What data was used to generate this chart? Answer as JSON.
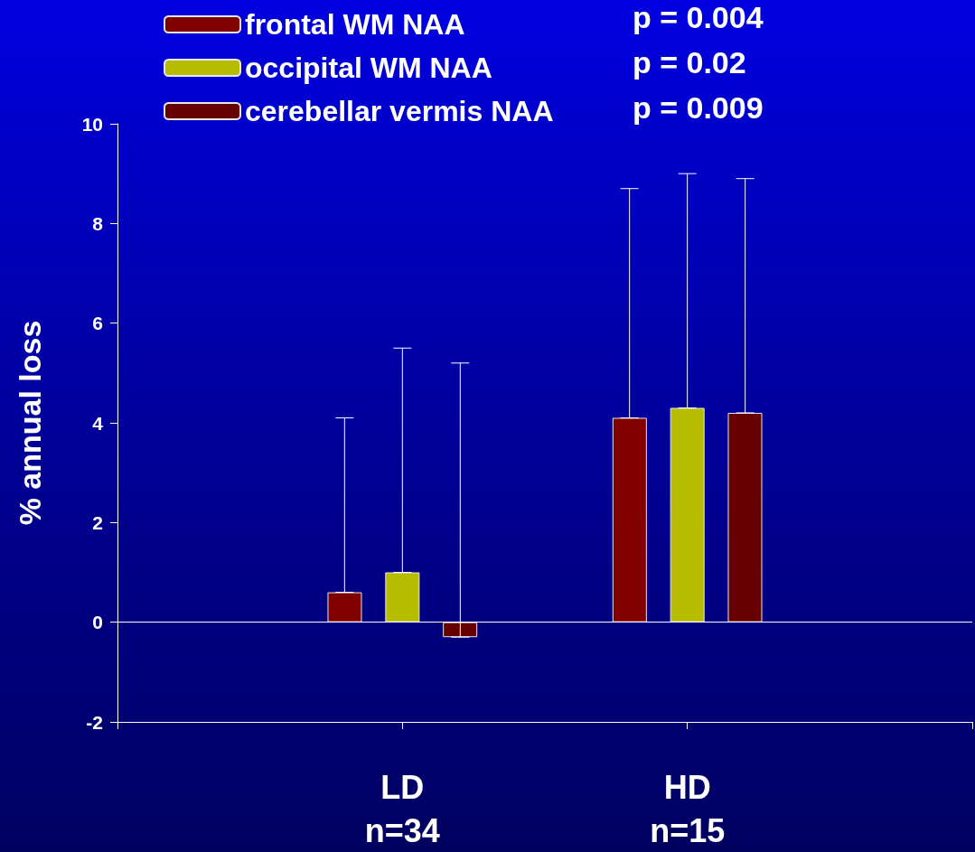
{
  "chart_data": {
    "type": "bar",
    "categories": [
      null,
      "LD\nn=34",
      "HD\nn=15",
      null
    ],
    "ylabel": "% annual loss",
    "ylim": [
      -2,
      10
    ],
    "yticks": [
      -2,
      0,
      2,
      4,
      6,
      8,
      10
    ],
    "series": [
      {
        "name": "frontal WM NAA",
        "color": "#800000",
        "values": [
          null,
          0.6,
          4.1,
          null
        ],
        "errors": [
          null,
          [
            0.6,
            4.1
          ],
          [
            4.1,
            8.7
          ],
          null
        ]
      },
      {
        "name": "occipital WM NAA",
        "color": "#b8bc00",
        "values": [
          null,
          1.0,
          4.3,
          null
        ],
        "errors": [
          null,
          [
            1.0,
            5.5
          ],
          [
            4.3,
            9.0
          ],
          null
        ]
      },
      {
        "name": "cerebellar vermis NAA",
        "color": "#660000",
        "values": [
          null,
          -0.3,
          4.2,
          null
        ],
        "errors": [
          null,
          [
            -0.3,
            5.2
          ],
          [
            4.2,
            8.9
          ],
          null
        ]
      }
    ],
    "annotations": [
      "p = 0.004",
      "p = 0.02",
      "p = 0.009"
    ],
    "ref_lines": [
      {
        "axis": "y",
        "value": 0
      }
    ],
    "legend": "top left",
    "grid": false
  }
}
